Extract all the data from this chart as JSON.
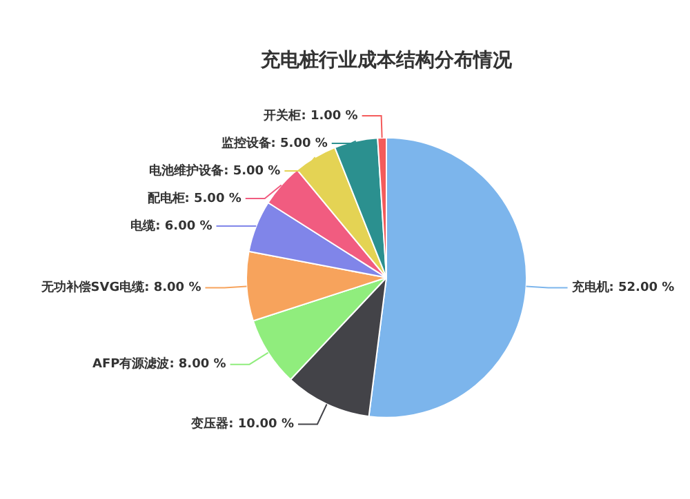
{
  "chart_data": {
    "type": "pie",
    "title": "充电桩行业成本结构分布情况",
    "categories": [
      "充电机",
      "变压器",
      "AFP有源滤波",
      "无功补偿SVG电缆",
      "电缆",
      "配电柜",
      "电池维护设备",
      "监控设备",
      "开关柜"
    ],
    "values": [
      52,
      10,
      8,
      8,
      6,
      5,
      5,
      5,
      1
    ],
    "value_labels": [
      "52.00 %",
      "10.00 %",
      "8.00 %",
      "8.00 %",
      "6.00 %",
      "5.00 %",
      "5.00 %",
      "5.00 %",
      "1.00 %"
    ],
    "colors": [
      "#7cb5ec",
      "#434348",
      "#90ed7d",
      "#f7a35c",
      "#8085e9",
      "#f15c80",
      "#e4d354",
      "#2b908f",
      "#f45b5b"
    ]
  }
}
